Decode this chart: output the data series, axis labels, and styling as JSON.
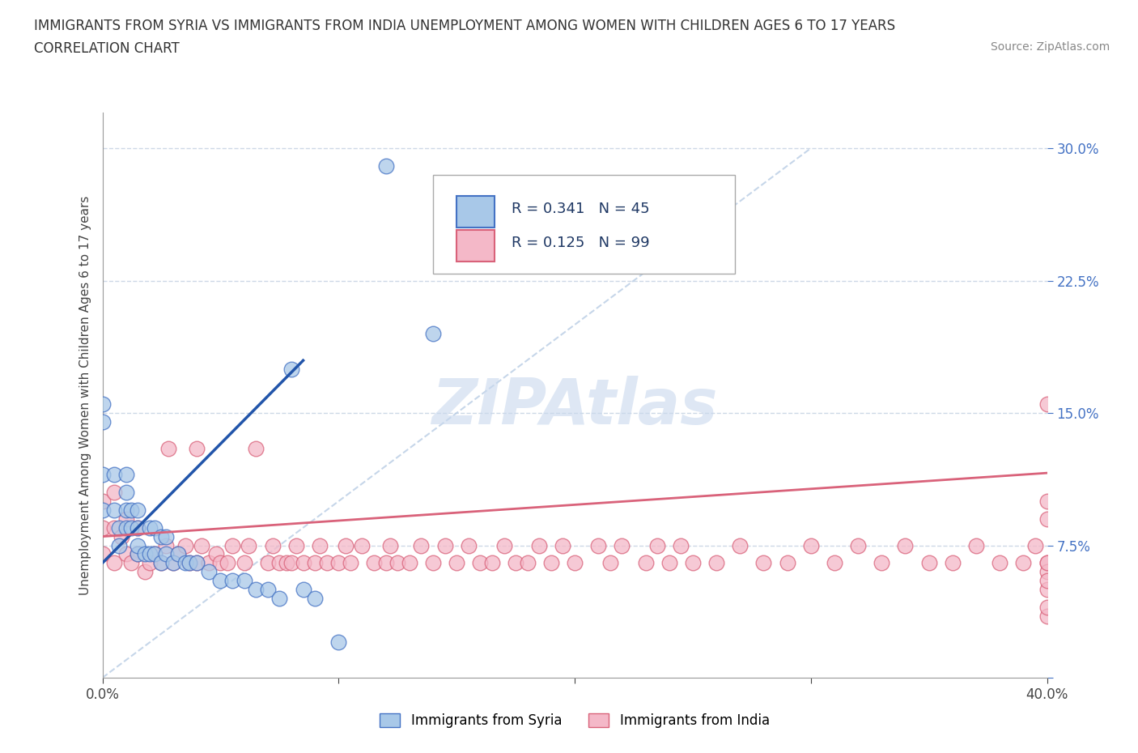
{
  "title_line1": "IMMIGRANTS FROM SYRIA VS IMMIGRANTS FROM INDIA UNEMPLOYMENT AMONG WOMEN WITH CHILDREN AGES 6 TO 17 YEARS",
  "title_line2": "CORRELATION CHART",
  "source": "Source: ZipAtlas.com",
  "ylabel": "Unemployment Among Women with Children Ages 6 to 17 years",
  "xlim": [
    0.0,
    0.4
  ],
  "ylim": [
    0.0,
    0.32
  ],
  "syria_color": "#a8c8e8",
  "syria_edge_color": "#4472c4",
  "india_color": "#f4b8c8",
  "india_edge_color": "#d9627a",
  "syria_line_color": "#2255aa",
  "india_line_color": "#d9627a",
  "diag_color": "#b8cce4",
  "legend_R_color": "#1f3864",
  "legend_N_color": "#2e75b6",
  "watermark_color": "#c8d8ee",
  "background_color": "#ffffff",
  "grid_color": "#c8d4e4",
  "syria_R": 0.341,
  "syria_N": 45,
  "india_R": 0.125,
  "india_N": 99,
  "syria_x": [
    0.0,
    0.0,
    0.0,
    0.0,
    0.005,
    0.005,
    0.007,
    0.007,
    0.01,
    0.01,
    0.01,
    0.01,
    0.012,
    0.012,
    0.015,
    0.015,
    0.015,
    0.015,
    0.018,
    0.02,
    0.02,
    0.022,
    0.022,
    0.025,
    0.025,
    0.027,
    0.027,
    0.03,
    0.032,
    0.035,
    0.037,
    0.04,
    0.045,
    0.05,
    0.055,
    0.06,
    0.065,
    0.07,
    0.075,
    0.08,
    0.085,
    0.09,
    0.1,
    0.12,
    0.14
  ],
  "syria_y": [
    0.095,
    0.115,
    0.145,
    0.155,
    0.095,
    0.115,
    0.075,
    0.085,
    0.085,
    0.095,
    0.105,
    0.115,
    0.085,
    0.095,
    0.07,
    0.075,
    0.085,
    0.095,
    0.07,
    0.07,
    0.085,
    0.07,
    0.085,
    0.065,
    0.08,
    0.07,
    0.08,
    0.065,
    0.07,
    0.065,
    0.065,
    0.065,
    0.06,
    0.055,
    0.055,
    0.055,
    0.05,
    0.05,
    0.045,
    0.175,
    0.05,
    0.045,
    0.02,
    0.29,
    0.195
  ],
  "india_x": [
    0.0,
    0.0,
    0.0,
    0.005,
    0.005,
    0.005,
    0.008,
    0.01,
    0.01,
    0.012,
    0.015,
    0.015,
    0.018,
    0.02,
    0.022,
    0.025,
    0.027,
    0.028,
    0.03,
    0.032,
    0.035,
    0.037,
    0.04,
    0.04,
    0.042,
    0.045,
    0.048,
    0.05,
    0.053,
    0.055,
    0.06,
    0.062,
    0.065,
    0.07,
    0.072,
    0.075,
    0.078,
    0.08,
    0.082,
    0.085,
    0.09,
    0.092,
    0.095,
    0.1,
    0.103,
    0.105,
    0.11,
    0.115,
    0.12,
    0.122,
    0.125,
    0.13,
    0.135,
    0.14,
    0.145,
    0.15,
    0.155,
    0.16,
    0.165,
    0.17,
    0.175,
    0.18,
    0.185,
    0.19,
    0.195,
    0.2,
    0.21,
    0.215,
    0.22,
    0.23,
    0.235,
    0.24,
    0.245,
    0.25,
    0.26,
    0.27,
    0.28,
    0.29,
    0.3,
    0.31,
    0.32,
    0.33,
    0.34,
    0.35,
    0.36,
    0.37,
    0.38,
    0.39,
    0.395,
    0.4,
    0.4,
    0.4,
    0.4,
    0.4,
    0.4,
    0.4,
    0.4,
    0.4,
    0.4
  ],
  "india_y": [
    0.07,
    0.085,
    0.1,
    0.065,
    0.085,
    0.105,
    0.08,
    0.07,
    0.09,
    0.065,
    0.07,
    0.085,
    0.06,
    0.065,
    0.07,
    0.065,
    0.075,
    0.13,
    0.065,
    0.07,
    0.075,
    0.065,
    0.065,
    0.13,
    0.075,
    0.065,
    0.07,
    0.065,
    0.065,
    0.075,
    0.065,
    0.075,
    0.13,
    0.065,
    0.075,
    0.065,
    0.065,
    0.065,
    0.075,
    0.065,
    0.065,
    0.075,
    0.065,
    0.065,
    0.075,
    0.065,
    0.075,
    0.065,
    0.065,
    0.075,
    0.065,
    0.065,
    0.075,
    0.065,
    0.075,
    0.065,
    0.075,
    0.065,
    0.065,
    0.075,
    0.065,
    0.065,
    0.075,
    0.065,
    0.075,
    0.065,
    0.075,
    0.065,
    0.075,
    0.065,
    0.075,
    0.065,
    0.075,
    0.065,
    0.065,
    0.075,
    0.065,
    0.065,
    0.075,
    0.065,
    0.075,
    0.065,
    0.075,
    0.065,
    0.065,
    0.075,
    0.065,
    0.065,
    0.075,
    0.155,
    0.09,
    0.1,
    0.065,
    0.035,
    0.04,
    0.05,
    0.06,
    0.055,
    0.065
  ]
}
